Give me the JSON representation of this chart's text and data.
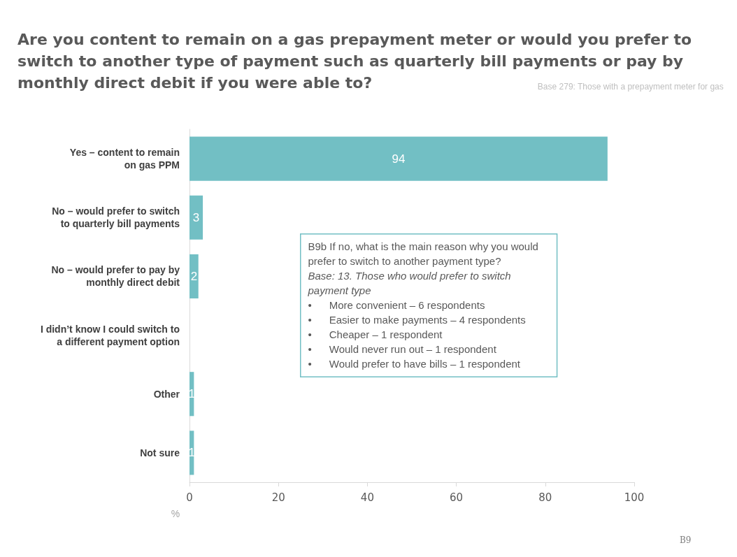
{
  "chart_data": {
    "type": "bar",
    "orientation": "horizontal",
    "title": "Are you content to remain on a gas prepayment meter or would you prefer to\nswitch to another type of payment such as quarterly bill payments or pay by\nmonthly direct debit if you were able to?",
    "subtitle": "Base 279: Those with a prepayment meter for gas",
    "categories": [
      "Yes – content to remain\non gas PPM",
      "No – would prefer to switch\nto quarterly bill payments",
      "No – would prefer to pay by\nmonthly direct debit",
      "I didn’t know I could switch to\na different payment option",
      "Other",
      "Not sure"
    ],
    "values": [
      94,
      3,
      2,
      null,
      1,
      1
    ],
    "color": "#72bfc4",
    "data_labels": true,
    "xlim": [
      0,
      100
    ],
    "xticks": [
      0,
      20,
      40,
      60,
      80,
      100
    ],
    "xlabel": "%",
    "grid": false,
    "annotations": [
      "B9b If no, what is the main reason why you would\nprefer to switch to another payment type?",
      "Base: 13. Those who would prefer to switch\npayment type",
      "•      More convenient – 6 respondents\n•      Easier to make payments – 4 respondents\n•      Cheaper – 1 respondent\n•      Would never run out – 1 respondent\n•      Would prefer to have bills – 1 respondent",
      "B9"
    ]
  }
}
